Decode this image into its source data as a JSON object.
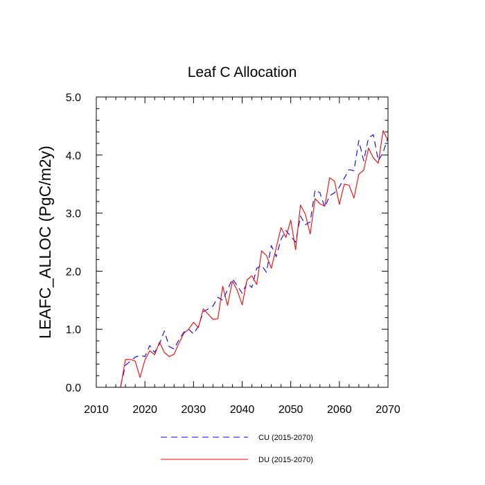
{
  "chart_data": {
    "type": "line",
    "title": "Leaf C Allocation",
    "xlabel": "",
    "ylabel": "LEAFC_ALLOC  (PgC/m2y)",
    "xlim": [
      2010,
      2070
    ],
    "ylim": [
      0,
      5
    ],
    "x_ticks": [
      2010,
      2020,
      2030,
      2040,
      2050,
      2060,
      2070
    ],
    "x_tick_labels": [
      "2010",
      "2020",
      "2030",
      "2040",
      "2050",
      "2060",
      "2070"
    ],
    "y_ticks": [
      0,
      1,
      2,
      3,
      4,
      5
    ],
    "y_tick_labels": [
      "0.0",
      "1.0",
      "2.0",
      "3.0",
      "4.0",
      "5.0"
    ],
    "grid": false,
    "legend_position": "bottom",
    "x": [
      2015,
      2016,
      2017,
      2018,
      2019,
      2020,
      2021,
      2022,
      2023,
      2024,
      2025,
      2026,
      2027,
      2028,
      2029,
      2030,
      2031,
      2032,
      2033,
      2034,
      2035,
      2036,
      2037,
      2038,
      2039,
      2040,
      2041,
      2042,
      2043,
      2044,
      2045,
      2046,
      2047,
      2048,
      2049,
      2050,
      2051,
      2052,
      2053,
      2054,
      2055,
      2056,
      2057,
      2058,
      2059,
      2060,
      2061,
      2062,
      2063,
      2064,
      2065,
      2066,
      2067,
      2068,
      2069,
      2070
    ],
    "series": [
      {
        "name": "CU (2015-2070)",
        "color": "#0000ff",
        "dash": "dashed",
        "values": [
          0.02,
          0.38,
          0.45,
          0.52,
          0.55,
          0.53,
          0.72,
          0.6,
          0.75,
          0.97,
          0.7,
          0.66,
          0.82,
          0.95,
          1.0,
          0.92,
          1.05,
          1.3,
          1.35,
          1.4,
          1.55,
          1.5,
          1.68,
          1.87,
          1.75,
          1.62,
          1.8,
          1.72,
          2.05,
          2.1,
          1.98,
          2.44,
          2.25,
          2.55,
          2.7,
          2.6,
          2.5,
          2.95,
          2.8,
          2.85,
          3.4,
          3.35,
          3.1,
          3.3,
          3.35,
          3.45,
          3.6,
          3.75,
          3.73,
          4.25,
          3.9,
          4.3,
          4.35,
          3.9,
          4.05,
          4.3
        ]
      },
      {
        "name": "DU (2015-2070)",
        "color": "#ff0000",
        "dash": "solid",
        "values": [
          0.0,
          0.48,
          0.48,
          0.45,
          0.17,
          0.47,
          0.63,
          0.56,
          0.78,
          0.6,
          0.53,
          0.57,
          0.76,
          0.93,
          1.0,
          1.12,
          1.03,
          1.35,
          1.26,
          1.17,
          1.18,
          1.74,
          1.41,
          1.83,
          1.67,
          1.42,
          1.85,
          1.92,
          1.77,
          2.35,
          2.27,
          2.05,
          2.4,
          2.75,
          2.58,
          2.88,
          2.37,
          3.14,
          2.98,
          2.64,
          3.25,
          3.16,
          3.12,
          3.61,
          3.55,
          3.15,
          3.5,
          3.48,
          3.26,
          3.67,
          3.74,
          4.12,
          3.95,
          3.86,
          4.42,
          4.25
        ]
      }
    ]
  }
}
